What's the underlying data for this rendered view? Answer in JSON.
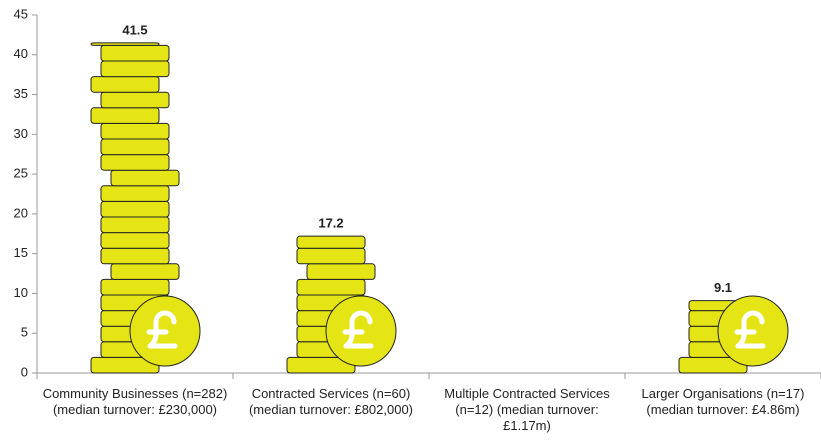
{
  "chart_data": {
    "type": "coin-bar",
    "categories": [
      "Community Businesses (n=282) (median turnover: £230,000)",
      "Contracted Services (n=60) (median turnover: £802,000)",
      "Multiple Contracted Services (n=12) (median turnover: £1.17m)",
      "Larger Organisations (n=17) (median turnover: £4.86m)"
    ],
    "values": [
      41.5,
      17.2,
      null,
      9.1
    ],
    "color": "#e5e515",
    "ylim": [
      0,
      45
    ],
    "yticks": [
      0,
      5,
      10,
      15,
      20,
      25,
      30,
      35,
      40,
      45
    ]
  }
}
